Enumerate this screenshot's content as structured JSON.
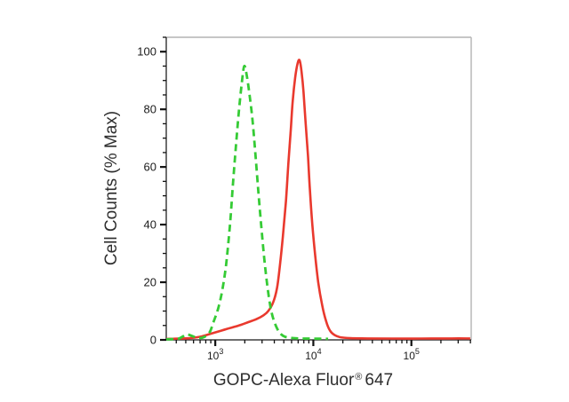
{
  "chart_data": {
    "type": "line",
    "subtype": "flow-cytometry-overlay-histogram",
    "title": "",
    "x_axis": {
      "label_prefix": "GOPC-Alexa Fluor",
      "label_registered": "®",
      "label_suffix": "647",
      "scale": "log10",
      "range_log10": [
        2.5,
        5.61
      ],
      "major_ticks_log10": [
        3,
        4,
        5
      ],
      "major_tick_labels": [
        {
          "base": "10",
          "exp": "3"
        },
        {
          "base": "10",
          "exp": "4"
        },
        {
          "base": "10",
          "exp": "5"
        }
      ],
      "minor_ticks": "2x-9x per decade"
    },
    "y_axis": {
      "label": "Cell Counts (% Max)",
      "range": [
        0,
        105
      ],
      "major_ticks": [
        0,
        20,
        40,
        60,
        80,
        100
      ],
      "minor_tick_step": 5
    },
    "grid": "off",
    "legend": "none",
    "frame_colors": {
      "axis": "#3f3f3f",
      "box": "#b4b4b4",
      "tick": "#111111"
    },
    "series": [
      {
        "name": "red-solid-curve",
        "color": "#e9392e",
        "line_style": "solid",
        "stroke_width": 2.6,
        "peak_log10_x": 3.86,
        "peak_percent": 97,
        "points": [
          [
            2.5,
            0.35
          ],
          [
            2.62,
            0.45
          ],
          [
            2.74,
            0.6
          ],
          [
            2.86,
            1.2
          ],
          [
            2.96,
            2.2
          ],
          [
            3.06,
            3.2
          ],
          [
            3.16,
            4.2
          ],
          [
            3.26,
            5.2
          ],
          [
            3.34,
            6.2
          ],
          [
            3.42,
            7.2
          ],
          [
            3.49,
            8.5
          ],
          [
            3.54,
            10
          ],
          [
            3.59,
            13
          ],
          [
            3.63,
            18
          ],
          [
            3.66,
            26
          ],
          [
            3.69,
            36
          ],
          [
            3.72,
            48
          ],
          [
            3.745,
            61
          ],
          [
            3.77,
            73
          ],
          [
            3.79,
            83
          ],
          [
            3.815,
            91
          ],
          [
            3.84,
            96
          ],
          [
            3.86,
            97
          ],
          [
            3.88,
            93
          ],
          [
            3.9,
            86
          ],
          [
            3.92,
            76
          ],
          [
            3.945,
            64
          ],
          [
            3.965,
            52
          ],
          [
            3.99,
            40
          ],
          [
            4.02,
            29
          ],
          [
            4.05,
            20
          ],
          [
            4.09,
            12
          ],
          [
            4.13,
            6.5
          ],
          [
            4.17,
            3.2
          ],
          [
            4.22,
            1.6
          ],
          [
            4.28,
            0.9
          ],
          [
            4.38,
            0.6
          ],
          [
            4.55,
            0.5
          ],
          [
            4.8,
            0.45
          ],
          [
            5.1,
            0.45
          ],
          [
            5.4,
            0.5
          ],
          [
            5.6,
            0.5
          ]
        ]
      },
      {
        "name": "green-dashed-curve",
        "color": "#35cb35",
        "line_style": "dashed",
        "dash_pattern": [
          8,
          5
        ],
        "stroke_width": 2.8,
        "peak_log10_x": 3.3,
        "peak_percent": 95,
        "points": [
          [
            2.5,
            0.2
          ],
          [
            2.56,
            0.25
          ],
          [
            2.62,
            0.35
          ],
          [
            2.67,
            1.2
          ],
          [
            2.71,
            1.9
          ],
          [
            2.76,
            1.4
          ],
          [
            2.82,
            0.7
          ],
          [
            2.88,
            0.9
          ],
          [
            2.94,
            2.5
          ],
          [
            2.98,
            6
          ],
          [
            3.03,
            11
          ],
          [
            3.07,
            17
          ],
          [
            3.11,
            26
          ],
          [
            3.15,
            40
          ],
          [
            3.18,
            54
          ],
          [
            3.21,
            67
          ],
          [
            3.24,
            79
          ],
          [
            3.27,
            89
          ],
          [
            3.295,
            95
          ],
          [
            3.32,
            92
          ],
          [
            3.35,
            85
          ],
          [
            3.38,
            76
          ],
          [
            3.41,
            64
          ],
          [
            3.44,
            51
          ],
          [
            3.47,
            39
          ],
          [
            3.5,
            28
          ],
          [
            3.53,
            19
          ],
          [
            3.56,
            12
          ],
          [
            3.59,
            7.5
          ],
          [
            3.63,
            4
          ],
          [
            3.67,
            2
          ],
          [
            3.71,
            1.1
          ],
          [
            3.77,
            0.7
          ],
          [
            3.85,
            0.5
          ],
          [
            3.96,
            0.45
          ],
          [
            4.07,
            0.4
          ],
          [
            4.15,
            0.35
          ]
        ]
      }
    ]
  }
}
